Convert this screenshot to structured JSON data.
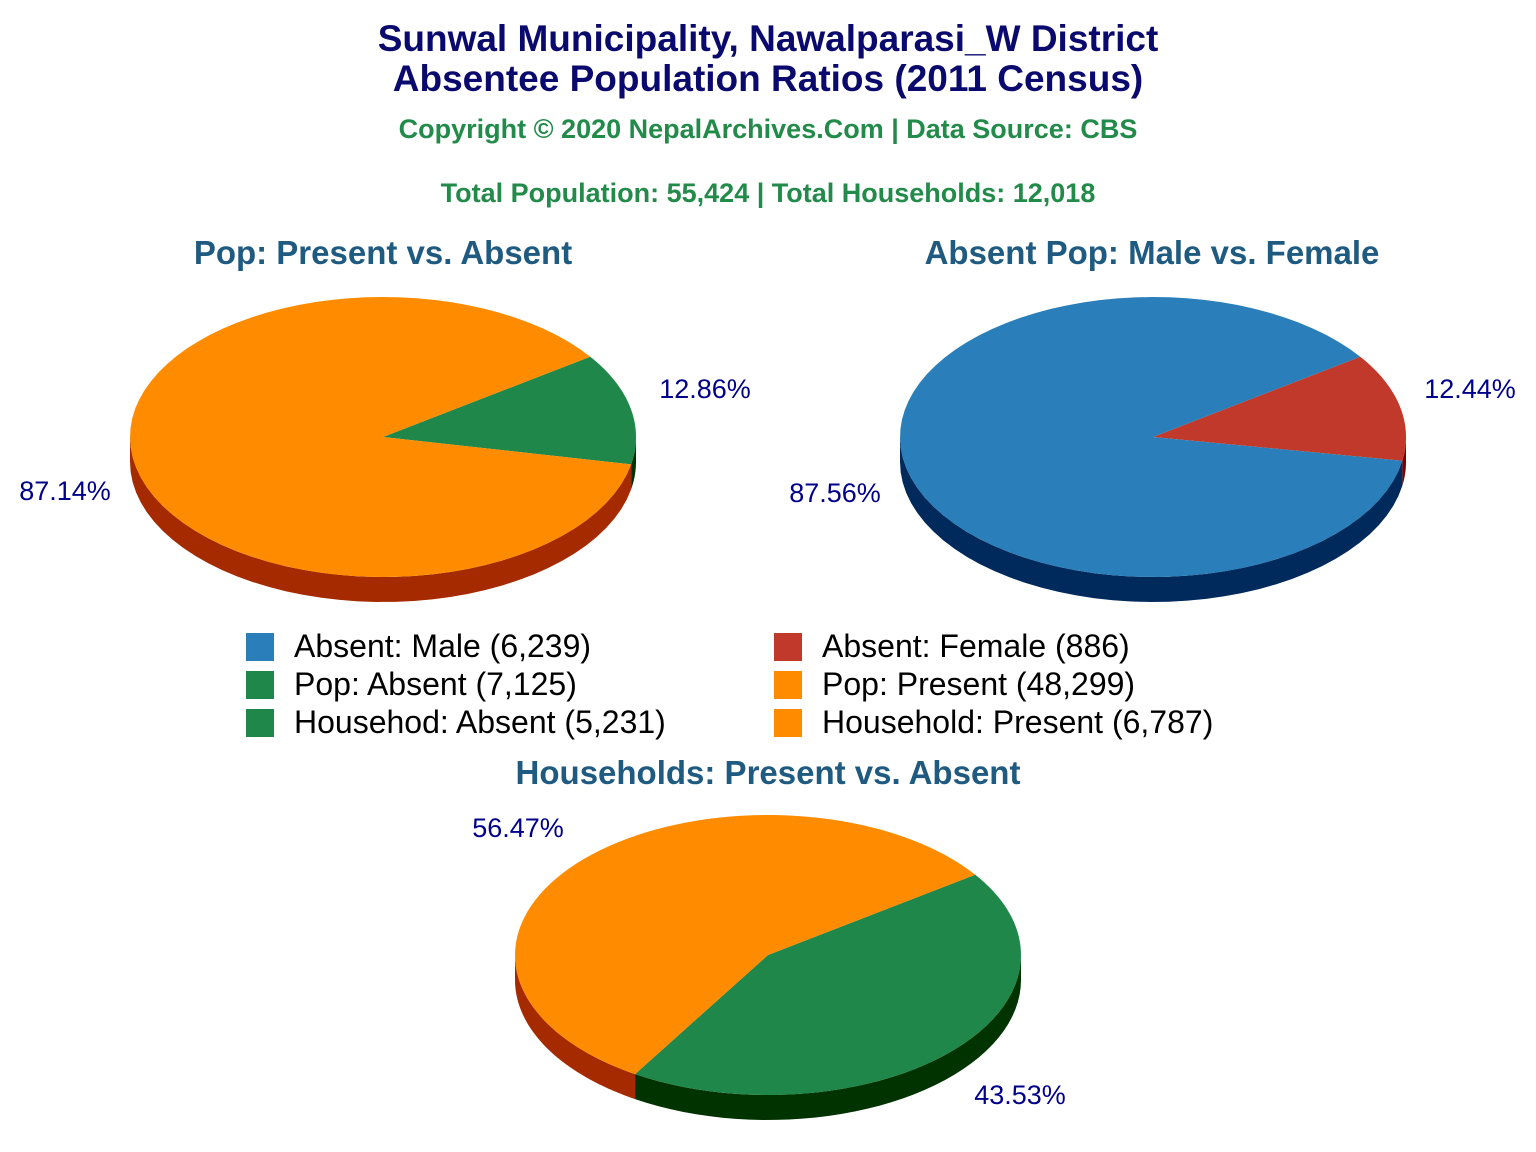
{
  "title_line1": "Sunwal Municipality, Nawalparasi_W District",
  "title_line2": "Absentee Population Ratios (2011 Census)",
  "copyright": "Copyright © 2020 NepalArchives.Com | Data Source: CBS",
  "totals": "Total Population: 55,424 | Total Households: 12,018",
  "chart_data": [
    {
      "type": "pie",
      "title": "Pop: Present vs. Absent",
      "slices": [
        {
          "name": "Pop: Absent",
          "value": 7125,
          "label": "12.86%",
          "color": "#20874a"
        },
        {
          "name": "Pop: Present",
          "value": 48299,
          "label": "87.14%",
          "color": "#ff8c00"
        }
      ]
    },
    {
      "type": "pie",
      "title": "Absent Pop: Male vs. Female",
      "slices": [
        {
          "name": "Absent: Female",
          "value": 886,
          "label": "12.44%",
          "color": "#c0392b"
        },
        {
          "name": "Absent: Male",
          "value": 6239,
          "label": "87.56%",
          "color": "#2a7fba"
        }
      ]
    },
    {
      "type": "pie",
      "title": "Households: Present vs. Absent",
      "slices": [
        {
          "name": "Househod: Absent",
          "value": 5231,
          "label": "43.53%",
          "color": "#20874a"
        },
        {
          "name": "Household: Present",
          "value": 6787,
          "label": "56.47%",
          "color": "#ff8c00"
        }
      ]
    }
  ],
  "legend": [
    {
      "label": "Absent: Male (6,239)",
      "color": "#2a7fba"
    },
    {
      "label": "Absent: Female (886)",
      "color": "#c0392b"
    },
    {
      "label": "Pop: Absent (7,125)",
      "color": "#20874a"
    },
    {
      "label": "Pop: Present (48,299)",
      "color": "#ff8c00"
    },
    {
      "label": "Househod: Absent (5,231)",
      "color": "#20874a"
    },
    {
      "label": "Household: Present (6,787)",
      "color": "#ff8c00"
    }
  ]
}
